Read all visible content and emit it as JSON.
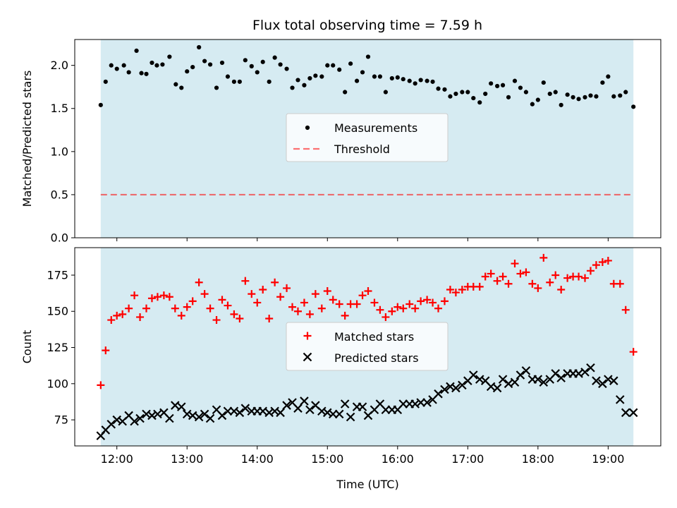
{
  "title": "Flux total observing time = 7.59 h",
  "colors": {
    "background_band": "#add8e6",
    "measurement": "#000000",
    "threshold": "#ff0000",
    "matched": "#ff0000",
    "predicted": "#000000"
  },
  "chart_data": [
    {
      "type": "scatter",
      "name": "ratio-panel",
      "xlabel": "",
      "ylabel": "Matched/Predicted stars",
      "xlim": [
        11.4,
        19.75
      ],
      "ylim": [
        0.0,
        2.3
      ],
      "shaded_span": [
        11.77,
        19.36
      ],
      "yticks": [
        0.0,
        0.5,
        1.0,
        1.5,
        2.0
      ],
      "ytick_labels": [
        "0.0",
        "0.5",
        "1.0",
        "1.5",
        "2.0"
      ],
      "legend_position": "center",
      "grid": false,
      "threshold": {
        "name": "Threshold",
        "value": 0.5,
        "style": "dashed"
      },
      "series": [
        {
          "name": "Measurements",
          "marker": "dot",
          "x": [
            11.77,
            11.84,
            11.92,
            12.0,
            12.1,
            12.17,
            12.28,
            12.35,
            12.42,
            12.5,
            12.57,
            12.65,
            12.75,
            12.84,
            12.92,
            13.0,
            13.08,
            13.17,
            13.25,
            13.33,
            13.42,
            13.5,
            13.58,
            13.67,
            13.75,
            13.83,
            13.92,
            14.0,
            14.08,
            14.17,
            14.25,
            14.33,
            14.42,
            14.5,
            14.58,
            14.67,
            14.75,
            14.83,
            14.92,
            15.0,
            15.08,
            15.17,
            15.25,
            15.33,
            15.42,
            15.5,
            15.58,
            15.67,
            15.75,
            15.83,
            15.92,
            16.0,
            16.08,
            16.17,
            16.25,
            16.33,
            16.42,
            16.5,
            16.58,
            16.67,
            16.75,
            16.83,
            16.92,
            17.0,
            17.08,
            17.17,
            17.25,
            17.33,
            17.42,
            17.5,
            17.58,
            17.67,
            17.75,
            17.83,
            17.92,
            18.0,
            18.08,
            18.17,
            18.25,
            18.33,
            18.42,
            18.5,
            18.58,
            18.67,
            18.75,
            18.83,
            18.92,
            19.0,
            19.08,
            19.17,
            19.25,
            19.36
          ],
          "y": [
            1.54,
            1.81,
            2.0,
            1.96,
            2.0,
            1.92,
            2.17,
            1.91,
            1.9,
            2.03,
            2.0,
            2.01,
            2.1,
            1.78,
            1.74,
            1.93,
            1.98,
            2.21,
            2.05,
            2.01,
            1.74,
            2.03,
            1.87,
            1.81,
            1.81,
            2.06,
            1.99,
            1.92,
            2.04,
            1.81,
            2.09,
            2.01,
            1.96,
            1.74,
            1.83,
            1.77,
            1.85,
            1.88,
            1.87,
            2.0,
            2.0,
            1.95,
            1.69,
            2.02,
            1.82,
            1.92,
            2.1,
            1.87,
            1.87,
            1.69,
            1.85,
            1.86,
            1.84,
            1.82,
            1.79,
            1.83,
            1.82,
            1.81,
            1.73,
            1.72,
            1.64,
            1.67,
            1.69,
            1.69,
            1.62,
            1.57,
            1.67,
            1.79,
            1.76,
            1.77,
            1.63,
            1.82,
            1.74,
            1.69,
            1.55,
            1.6,
            1.8,
            1.67,
            1.69,
            1.54,
            1.66,
            1.63,
            1.61,
            1.63,
            1.65,
            1.64,
            1.8,
            1.87,
            1.64,
            1.65,
            1.69,
            1.52
          ]
        }
      ]
    },
    {
      "type": "scatter",
      "name": "count-panel",
      "xlabel": "Time (UTC)",
      "ylabel": "Count",
      "xlim": [
        11.4,
        19.75
      ],
      "ylim": [
        57,
        194
      ],
      "shaded_span": [
        11.77,
        19.36
      ],
      "yticks": [
        75,
        100,
        125,
        150,
        175
      ],
      "ytick_labels": [
        "75",
        "100",
        "125",
        "150",
        "175"
      ],
      "xticks": [
        12,
        13,
        14,
        15,
        16,
        17,
        18,
        19
      ],
      "xtick_labels": [
        "12:00",
        "13:00",
        "14:00",
        "15:00",
        "16:00",
        "17:00",
        "18:00",
        "19:00"
      ],
      "legend_position": "center",
      "grid": false,
      "series": [
        {
          "name": "Matched stars",
          "marker": "plus",
          "x": [
            11.77,
            11.84,
            11.92,
            12.0,
            12.08,
            12.17,
            12.25,
            12.33,
            12.42,
            12.5,
            12.58,
            12.67,
            12.75,
            12.83,
            12.92,
            13.0,
            13.08,
            13.17,
            13.25,
            13.33,
            13.42,
            13.5,
            13.58,
            13.67,
            13.75,
            13.83,
            13.92,
            14.0,
            14.08,
            14.17,
            14.25,
            14.33,
            14.42,
            14.5,
            14.58,
            14.67,
            14.75,
            14.83,
            14.92,
            15.0,
            15.08,
            15.17,
            15.25,
            15.33,
            15.42,
            15.5,
            15.58,
            15.67,
            15.75,
            15.83,
            15.92,
            16.0,
            16.08,
            16.17,
            16.25,
            16.33,
            16.42,
            16.5,
            16.58,
            16.67,
            16.75,
            16.83,
            16.92,
            17.0,
            17.08,
            17.17,
            17.25,
            17.33,
            17.42,
            17.5,
            17.58,
            17.67,
            17.75,
            17.83,
            17.92,
            18.0,
            18.08,
            18.17,
            18.25,
            18.33,
            18.42,
            18.5,
            18.58,
            18.67,
            18.75,
            18.83,
            18.92,
            19.0,
            19.08,
            19.17,
            19.25,
            19.36
          ],
          "y": [
            99,
            123,
            144,
            147,
            148,
            152,
            161,
            146,
            152,
            159,
            160,
            161,
            160,
            152,
            147,
            153,
            157,
            170,
            162,
            152,
            144,
            158,
            154,
            148,
            145,
            171,
            162,
            156,
            165,
            145,
            170,
            160,
            166,
            153,
            150,
            156,
            148,
            162,
            152,
            164,
            158,
            155,
            147,
            155,
            155,
            161,
            164,
            156,
            151,
            146,
            150,
            153,
            152,
            155,
            152,
            157,
            158,
            156,
            152,
            157,
            165,
            163,
            165,
            167,
            167,
            167,
            174,
            176,
            171,
            174,
            169,
            183,
            176,
            177,
            169,
            166,
            187,
            170,
            175,
            165,
            173,
            174,
            174,
            173,
            178,
            182,
            184,
            185,
            169,
            169,
            151,
            122
          ]
        },
        {
          "name": "Predicted stars",
          "marker": "x",
          "x": [
            11.77,
            11.84,
            11.92,
            12.0,
            12.08,
            12.17,
            12.25,
            12.33,
            12.42,
            12.5,
            12.58,
            12.67,
            12.75,
            12.83,
            12.92,
            13.0,
            13.08,
            13.17,
            13.25,
            13.33,
            13.42,
            13.5,
            13.58,
            13.67,
            13.75,
            13.83,
            13.92,
            14.0,
            14.08,
            14.17,
            14.25,
            14.33,
            14.42,
            14.5,
            14.58,
            14.67,
            14.75,
            14.83,
            14.92,
            15.0,
            15.08,
            15.17,
            15.25,
            15.33,
            15.42,
            15.5,
            15.58,
            15.67,
            15.75,
            15.83,
            15.92,
            16.0,
            16.08,
            16.17,
            16.25,
            16.33,
            16.42,
            16.5,
            16.58,
            16.67,
            16.75,
            16.83,
            16.92,
            17.0,
            17.08,
            17.17,
            17.25,
            17.33,
            17.42,
            17.5,
            17.58,
            17.67,
            17.75,
            17.83,
            17.92,
            18.0,
            18.08,
            18.17,
            18.25,
            18.33,
            18.42,
            18.5,
            18.58,
            18.67,
            18.75,
            18.83,
            18.92,
            19.0,
            19.08,
            19.17,
            19.25,
            19.36
          ],
          "y": [
            64,
            68,
            72,
            75,
            74,
            78,
            74,
            76,
            79,
            78,
            79,
            80,
            76,
            85,
            84,
            79,
            78,
            77,
            79,
            76,
            82,
            78,
            81,
            81,
            80,
            83,
            81,
            81,
            81,
            80,
            81,
            80,
            85,
            87,
            83,
            88,
            82,
            85,
            81,
            80,
            79,
            79,
            86,
            77,
            84,
            84,
            78,
            82,
            86,
            82,
            82,
            82,
            86,
            86,
            86,
            87,
            87,
            89,
            93,
            96,
            98,
            97,
            99,
            102,
            106,
            103,
            102,
            98,
            97,
            103,
            100,
            101,
            106,
            109,
            103,
            103,
            101,
            103,
            107,
            104,
            107,
            107,
            107,
            108,
            111,
            102,
            100,
            103,
            102,
            89,
            80,
            80
          ]
        }
      ]
    }
  ]
}
